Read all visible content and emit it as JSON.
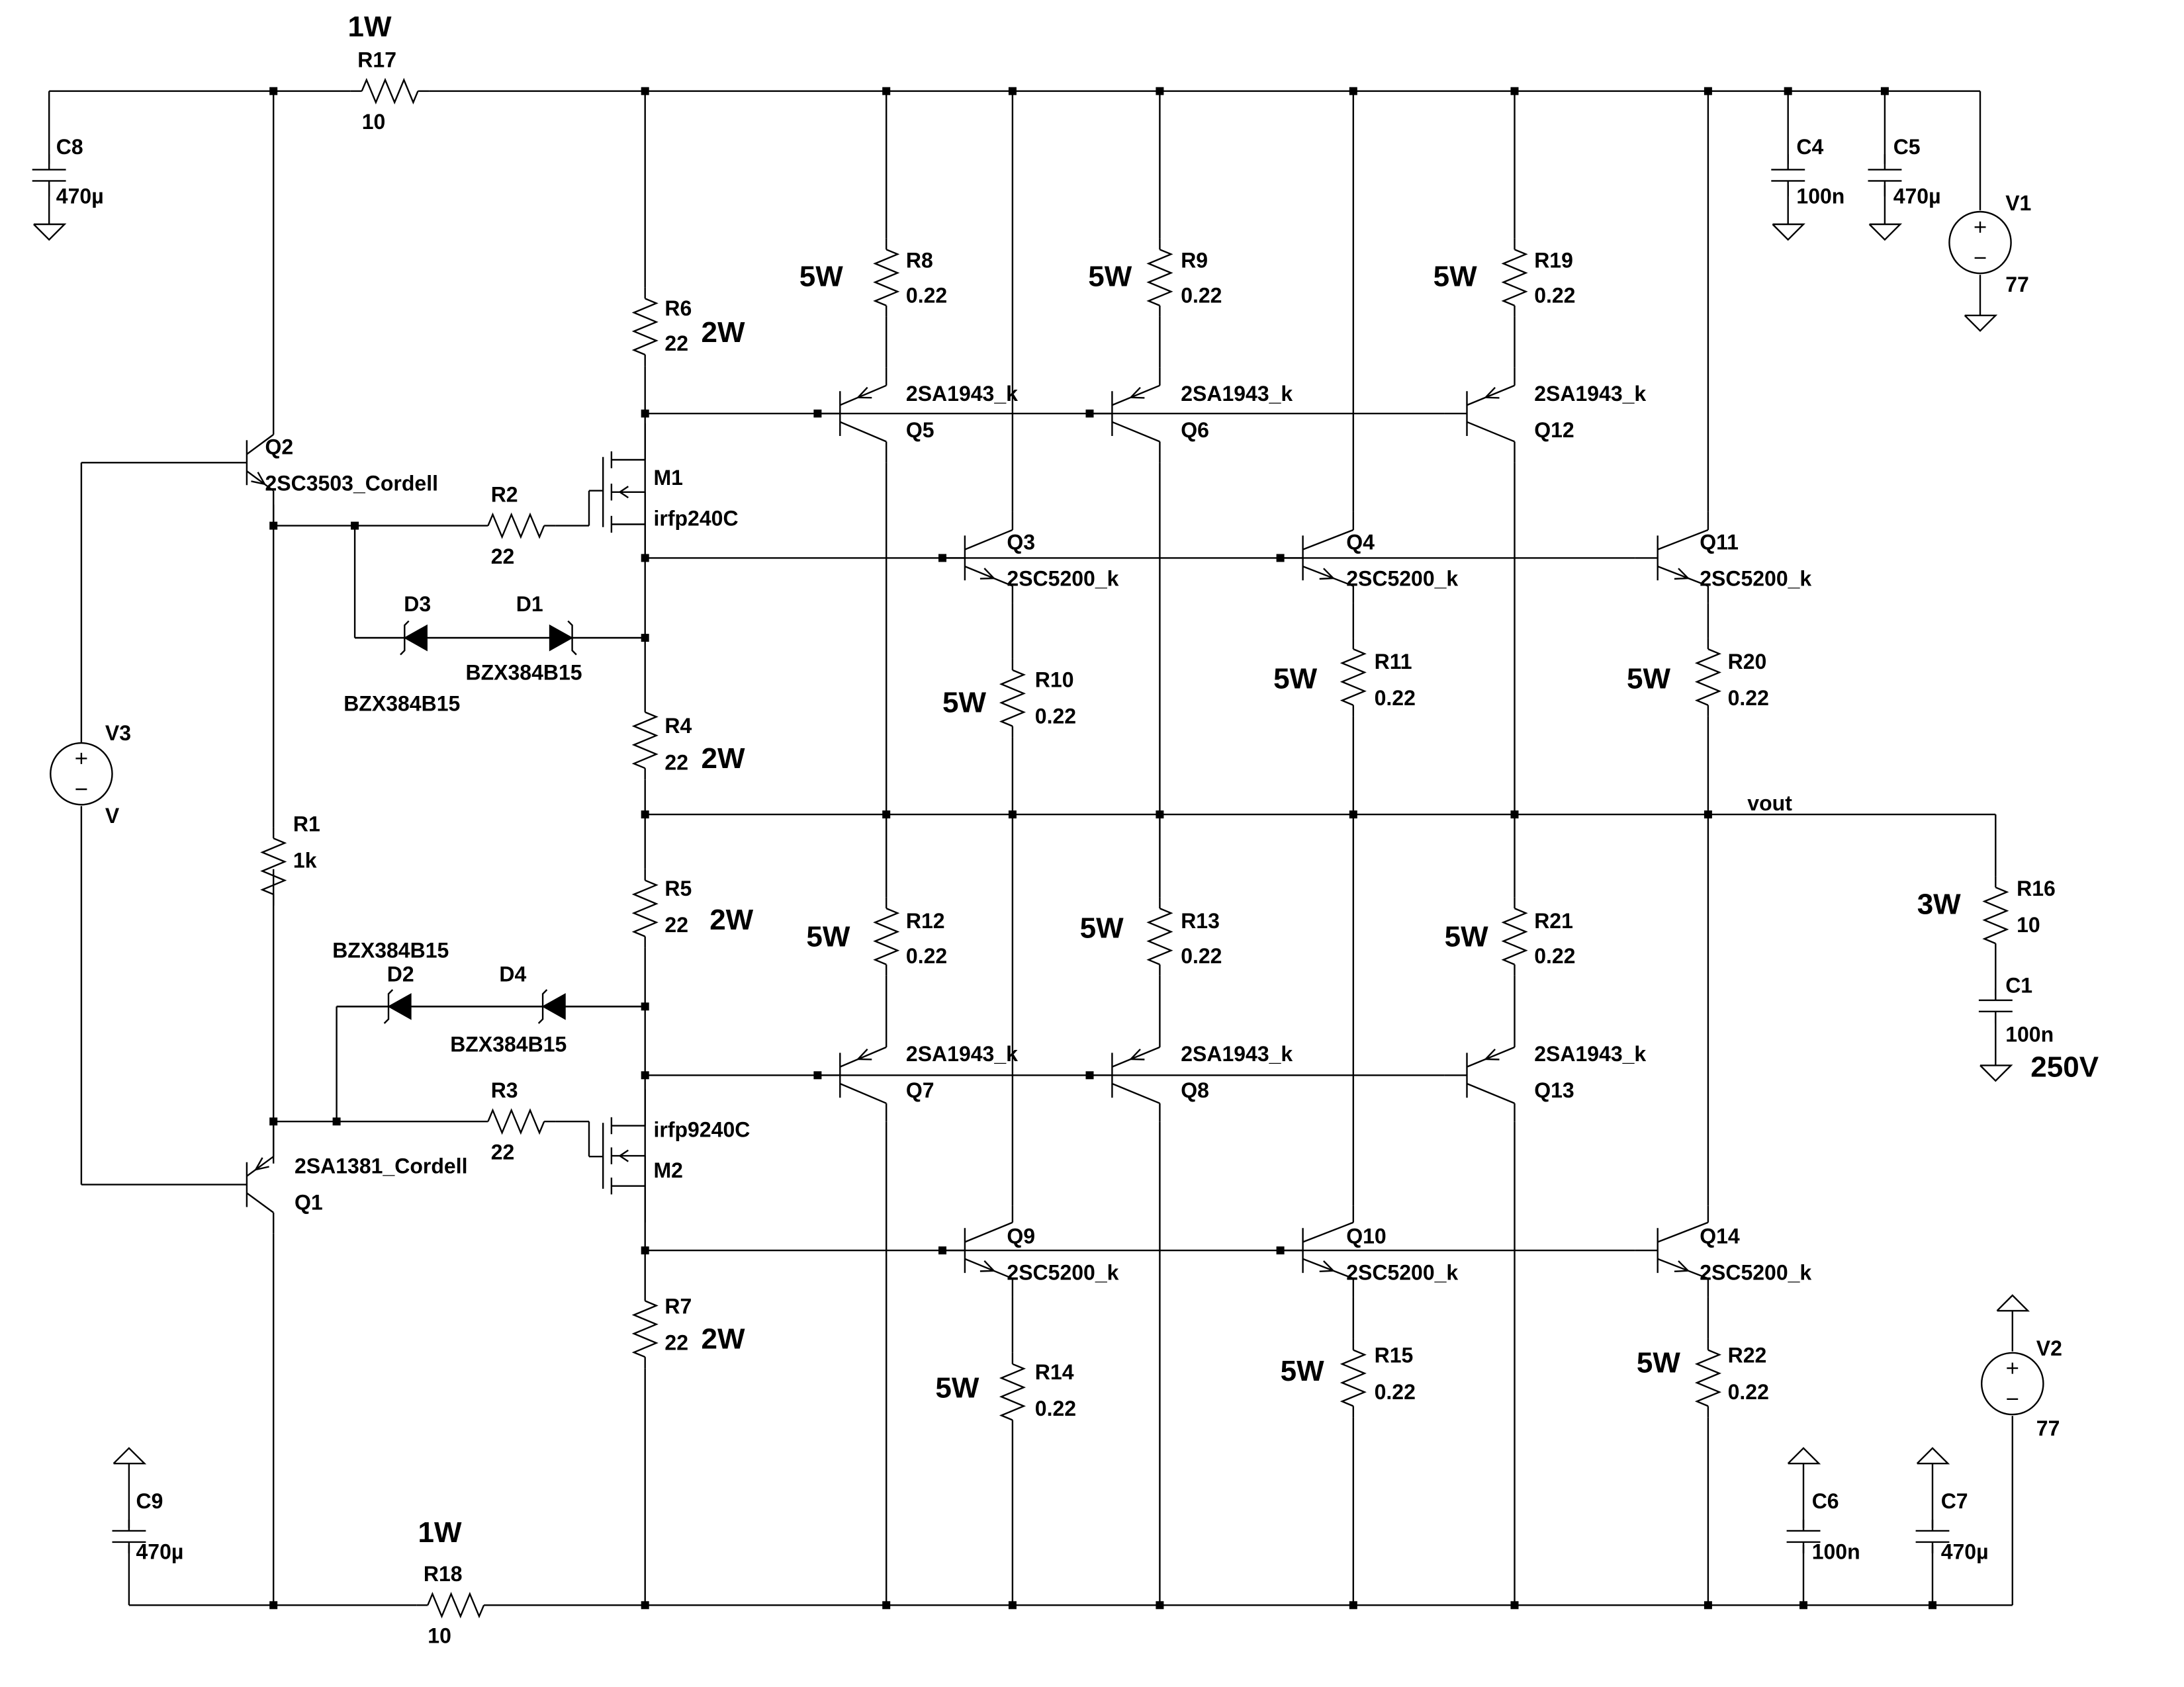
{
  "labels": {
    "C8": [
      "C8",
      "470µ"
    ],
    "C9": [
      "C9",
      "470µ"
    ],
    "C4": [
      "C4",
      "100n"
    ],
    "C5": [
      "C5",
      "470µ"
    ],
    "C6": [
      "C6",
      "100n"
    ],
    "C7": [
      "C7",
      "470µ"
    ],
    "C1": [
      "C1",
      "100n"
    ],
    "V1": [
      "V1",
      "77"
    ],
    "V2": [
      "V2",
      "77"
    ],
    "V3": [
      "V3",
      "V"
    ],
    "R17": [
      "R17",
      "10"
    ],
    "R18": [
      "R18",
      "10"
    ],
    "R6": [
      "R6",
      "22"
    ],
    "R4": [
      "R4",
      "22"
    ],
    "R5": [
      "R5",
      "22"
    ],
    "R7": [
      "R7",
      "22"
    ],
    "R1": [
      "R1",
      "1k"
    ],
    "R2": [
      "R2",
      "22"
    ],
    "R3": [
      "R3",
      "22"
    ],
    "R16": [
      "R16",
      "10"
    ],
    "R8": [
      "R8",
      "0.22"
    ],
    "R9": [
      "R9",
      "0.22"
    ],
    "R19": [
      "R19",
      "0.22"
    ],
    "R10": [
      "R10",
      "0.22"
    ],
    "R11": [
      "R11",
      "0.22"
    ],
    "R20": [
      "R20",
      "0.22"
    ],
    "R12": [
      "R12",
      "0.22"
    ],
    "R13": [
      "R13",
      "0.22"
    ],
    "R21": [
      "R21",
      "0.22"
    ],
    "R14": [
      "R14",
      "0.22"
    ],
    "R15": [
      "R15",
      "0.22"
    ],
    "R22": [
      "R22",
      "0.22"
    ],
    "Q2": [
      "Q2",
      "2SC3503_Cordell"
    ],
    "Q1": [
      "2SA1381_Cordell",
      "Q1"
    ],
    "M1": [
      "M1",
      "irfp240C"
    ],
    "M2": [
      "irfp9240C",
      "M2"
    ],
    "Q5": [
      "2SA1943_k",
      "Q5"
    ],
    "Q6": [
      "2SA1943_k",
      "Q6"
    ],
    "Q12": [
      "2SA1943_k",
      "Q12"
    ],
    "Q7": [
      "2SA1943_k",
      "Q7"
    ],
    "Q8": [
      "2SA1943_k",
      "Q8"
    ],
    "Q13": [
      "2SA1943_k",
      "Q13"
    ],
    "Q3": [
      "Q3",
      "2SC5200_k"
    ],
    "Q4": [
      "Q4",
      "2SC5200_k"
    ],
    "Q11": [
      "Q11",
      "2SC5200_k"
    ],
    "Q9": [
      "Q9",
      "2SC5200_k"
    ],
    "Q10": [
      "Q10",
      "2SC5200_k"
    ],
    "Q14": [
      "Q14",
      "2SC5200_k"
    ],
    "D1": [
      "D1",
      "BZX384B15"
    ],
    "D3": [
      "D3",
      "BZX384B15"
    ],
    "D2": [
      "BZX384B15",
      "D2"
    ],
    "D4": [
      "D4",
      "BZX384B15"
    ]
  },
  "power": {
    "R17": "1W",
    "R18": "1W",
    "R6": "2W",
    "R4": "2W",
    "R5": "2W",
    "R7": "2W",
    "R8": "5W",
    "R9": "5W",
    "R19": "5W",
    "R10": "5W",
    "R11": "5W",
    "R20": "5W",
    "R12": "5W",
    "R13": "5W",
    "R21": "5W",
    "R14": "5W",
    "R15": "5W",
    "R22": "5W",
    "R16": "3W",
    "C1": "250V"
  },
  "nets": {
    "vout": "vout"
  }
}
